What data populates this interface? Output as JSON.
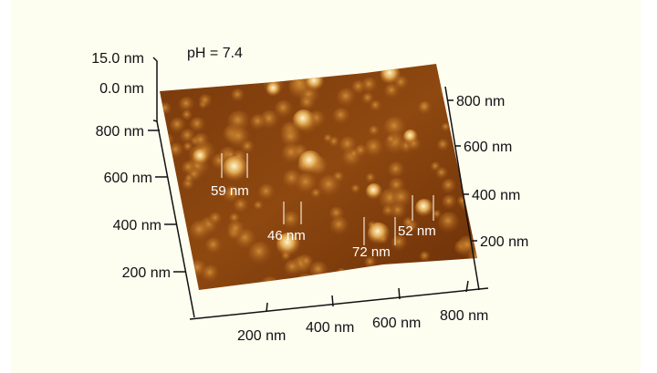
{
  "title": "pH = 7.4",
  "z_axis": {
    "ticks": [
      "15.0 nm",
      "0.0 nm"
    ]
  },
  "left_axis": {
    "ticks": [
      "800 nm",
      "600 nm",
      "400 nm",
      "200 nm"
    ]
  },
  "right_axis": {
    "ticks": [
      "800 nm",
      "600 nm",
      "400 nm",
      "200 nm"
    ]
  },
  "bottom_axis": {
    "ticks": [
      "200 nm",
      "400 nm",
      "600 nm",
      "800 nm"
    ]
  },
  "annotations": [
    "59 nm",
    "46 nm",
    "72 nm",
    "52 nm"
  ],
  "colors": {
    "surface_dark": "#6b2f08",
    "surface_mid": "#a65a14",
    "peak": "#fff4d0",
    "background": "#fdfdf0"
  }
}
